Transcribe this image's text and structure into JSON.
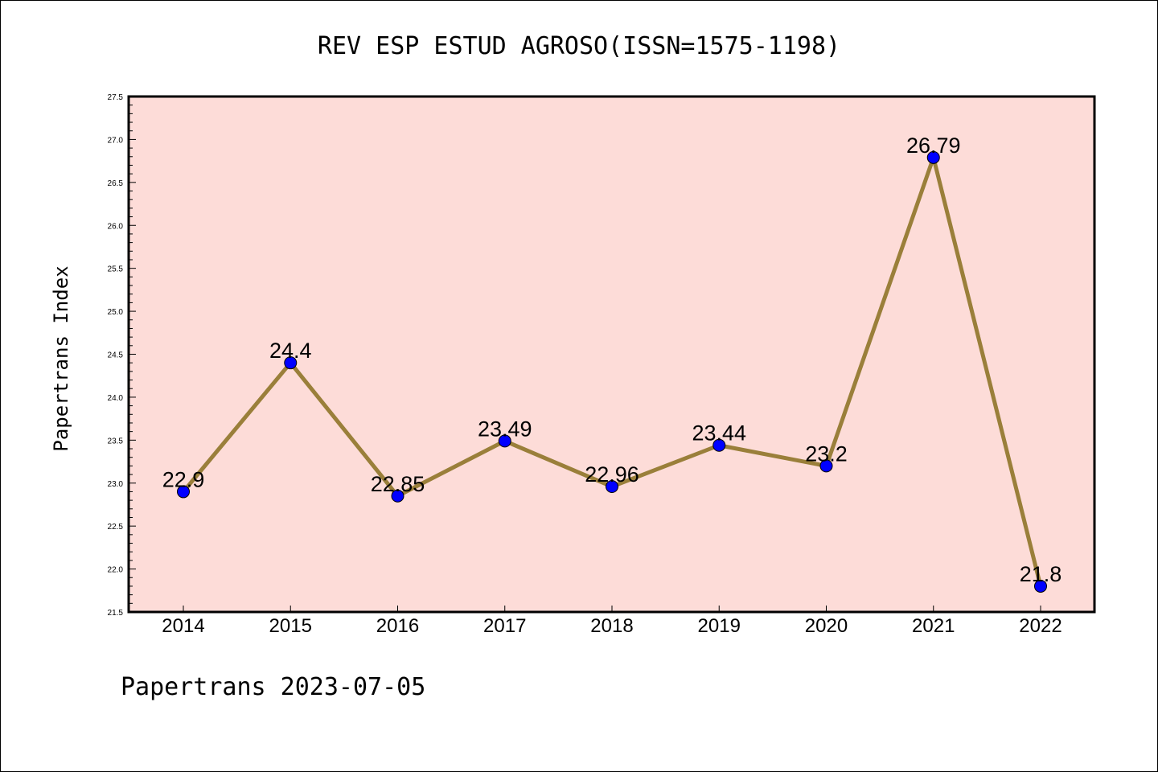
{
  "chart_data": {
    "type": "line",
    "title": "REV ESP ESTUD AGROSO(ISSN=1575-1198)",
    "ylabel": "Papertrans Index",
    "xlabel": "",
    "footer": "Papertrans 2023-07-05",
    "categories": [
      "2014",
      "2015",
      "2016",
      "2017",
      "2018",
      "2019",
      "2020",
      "2021",
      "2022"
    ],
    "values": [
      22.9,
      24.4,
      22.85,
      23.49,
      22.96,
      23.44,
      23.2,
      26.79,
      21.8
    ],
    "data_labels": [
      "22.9",
      "24.4",
      "22.85",
      "23.49",
      "22.96",
      "23.44",
      "23.2",
      "26.79",
      "21.8"
    ],
    "ylim": [
      21.5,
      27.5
    ],
    "yticks": [
      "21.5",
      "22.0",
      "22.5",
      "23.0",
      "23.5",
      "24.0",
      "24.5",
      "25.0",
      "25.5",
      "26.0",
      "26.5",
      "27.0",
      "27.5"
    ],
    "grid": false,
    "colors": {
      "plot_background": "#fddcd8",
      "line": "#9a7f3a",
      "marker": "#0000ff"
    }
  }
}
